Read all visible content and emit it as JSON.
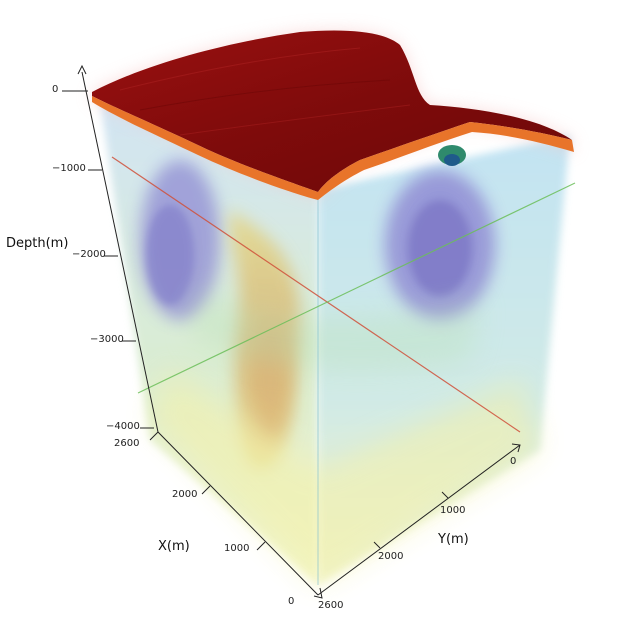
{
  "axes": {
    "depth": {
      "title": "Depth(m)",
      "ticks": [
        "0",
        "−1000",
        "−2000",
        "−3000",
        "−4000"
      ]
    },
    "x": {
      "title": "X(m)",
      "ticks": [
        "2600",
        "2000",
        "1000",
        "0"
      ]
    },
    "y": {
      "title": "Y(m)",
      "ticks": [
        "0",
        "1000",
        "2000",
        "2600"
      ]
    }
  },
  "colors": {
    "surface_top": "#8c0f0f",
    "surface_edge": "#e8742a",
    "volume_low": "#7f7fd0",
    "volume_mid": "#9fd3ee",
    "volume_high": "#f2f0a0",
    "anomaly_core": "#d8a850",
    "section_line_red": "#d0503a",
    "section_line_green": "#6cbf5a"
  }
}
